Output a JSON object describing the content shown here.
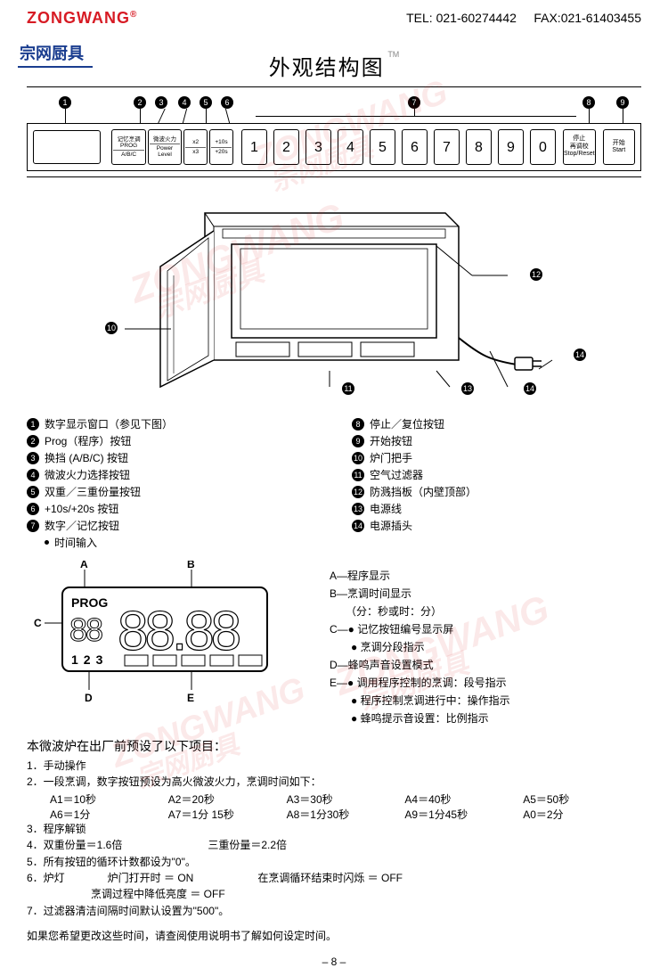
{
  "header": {
    "brand_en": "ZONGWANG",
    "reg": "®",
    "brand_cn": "宗网厨具",
    "tel_label": "TEL: 021-60274442",
    "fax_label": "FAX:021-61403455"
  },
  "title": "外观结构图",
  "tm": "TM",
  "panel": {
    "func_buttons": [
      {
        "top": "记忆烹调",
        "mid": "PROG",
        "bot": "A/B/C"
      },
      {
        "top": "微波火力",
        "bot": "Power Level"
      },
      {
        "top": "x2",
        "bot": "x3"
      },
      {
        "top": "+10s",
        "bot": "+20s"
      }
    ],
    "numbers": [
      "1",
      "2",
      "3",
      "4",
      "5",
      "6",
      "7",
      "8",
      "9",
      "0"
    ],
    "stop": {
      "top": "停止",
      "mid": "再调校",
      "bot": "Stop/Reset"
    },
    "start": {
      "top": "开始",
      "bot": "Start"
    },
    "callouts": [
      1,
      2,
      3,
      4,
      5,
      6,
      7,
      8,
      9
    ]
  },
  "legend_left": [
    "数字显示窗口（参见下图）",
    "Prog（程序）按钮",
    "换挡 (A/B/C) 按钮",
    "微波火力选择按钮",
    "双重／三重份量按钮",
    "+10s/+20s 按钮",
    "数字／记忆按钮"
  ],
  "legend_left_sub": "时间输入",
  "legend_right": [
    "停止／复位按钮",
    "开始按钮",
    "炉门把手",
    "空气过滤器",
    "防溅挡板（内壁顶部）",
    "电源线",
    "电源插头"
  ],
  "display": {
    "letters": [
      "A",
      "B",
      "C",
      "D",
      "E"
    ],
    "prog": "PROG",
    "small_digits": "88",
    "big_digits": "88.88",
    "bottom_nums": "1 2 3",
    "labels": [
      "A—程序显示",
      "B—烹调时间显示",
      "　　（分：秒或时：分）",
      "C—● 记忆按钮编号显示屏",
      "　　● 烹调分段指示",
      "D—蜂鸣声音设置模式",
      "E—● 调用程序控制的烹调：段号指示",
      "　　● 程序控制烹调进行中：操作指示",
      "　　● 蜂鸣提示音设置：比例指示"
    ]
  },
  "presets": {
    "head": "本微波炉在出厂前预设了以下项目：",
    "rows": [
      "1．手动操作",
      "2．一段烹调，数字按钮预设为高火微波火力，烹调时间如下："
    ],
    "times1": [
      "A1＝10秒",
      "A2＝20秒",
      "A3＝30秒",
      "A4＝40秒",
      "A5＝50秒"
    ],
    "times2": [
      "A6＝1分",
      "A7＝1分 15秒",
      "A8＝1分30秒",
      "A9＝1分45秒",
      "A0＝2分"
    ],
    "rows2": [
      "3．程序解锁",
      "4．双重份量＝1.6倍　　　　　　　　三重份量＝2.2倍",
      "5．所有按钮的循环计数都设为\"0\"。",
      "6．炉灯　　　　炉门打开时 ＝ ON　　　　　　在烹调循环结束时闪烁 ＝ OFF",
      "　　　　　　烹调过程中降低亮度 ＝ OFF",
      "7．过滤器清洁间隔时间默认设置为\"500\"。"
    ],
    "footer": "如果您希望更改这些时间，请查阅使用说明书了解如何设定时间。"
  },
  "pagenum": "– 8 –",
  "microwave_callouts": [
    10,
    11,
    12,
    13,
    14
  ],
  "colors": {
    "brand_red": "#d71b24",
    "brand_blue": "#1a3d8f",
    "black": "#000000"
  },
  "watermark": {
    "en": "ZONGWANG",
    "cn": "宗网厨具"
  }
}
